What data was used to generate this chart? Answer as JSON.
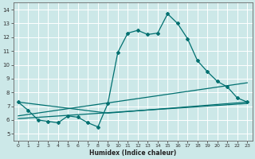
{
  "title": "",
  "xlabel": "Humidex (Indice chaleur)",
  "xlim": [
    -0.5,
    23.5
  ],
  "ylim": [
    4.5,
    14.5
  ],
  "xticks": [
    0,
    1,
    2,
    3,
    4,
    5,
    6,
    7,
    8,
    9,
    10,
    11,
    12,
    13,
    14,
    15,
    16,
    17,
    18,
    19,
    20,
    21,
    22,
    23
  ],
  "yticks": [
    5,
    6,
    7,
    8,
    9,
    10,
    11,
    12,
    13,
    14
  ],
  "background_color": "#cce8e8",
  "grid_color": "#b0d4d4",
  "line_color": "#007070",
  "lines": [
    {
      "x": [
        0,
        1,
        2,
        3,
        4,
        5,
        6,
        7,
        8,
        9,
        10,
        11,
        12,
        13,
        14,
        15,
        16,
        17,
        18,
        19,
        20,
        21,
        22,
        23
      ],
      "y": [
        7.3,
        6.7,
        6.0,
        5.9,
        5.8,
        6.3,
        6.2,
        5.8,
        5.5,
        7.2,
        10.9,
        12.3,
        12.5,
        12.2,
        12.3,
        13.7,
        13.0,
        11.9,
        10.3,
        9.5,
        8.8,
        8.4,
        7.6,
        7.3
      ],
      "marker": true
    },
    {
      "x": [
        0,
        23
      ],
      "y": [
        6.3,
        8.7
      ],
      "marker": false
    },
    {
      "x": [
        0,
        23
      ],
      "y": [
        6.1,
        7.2
      ],
      "marker": false
    },
    {
      "x": [
        0,
        9,
        23
      ],
      "y": [
        7.3,
        6.5,
        7.3
      ],
      "marker": false
    }
  ]
}
